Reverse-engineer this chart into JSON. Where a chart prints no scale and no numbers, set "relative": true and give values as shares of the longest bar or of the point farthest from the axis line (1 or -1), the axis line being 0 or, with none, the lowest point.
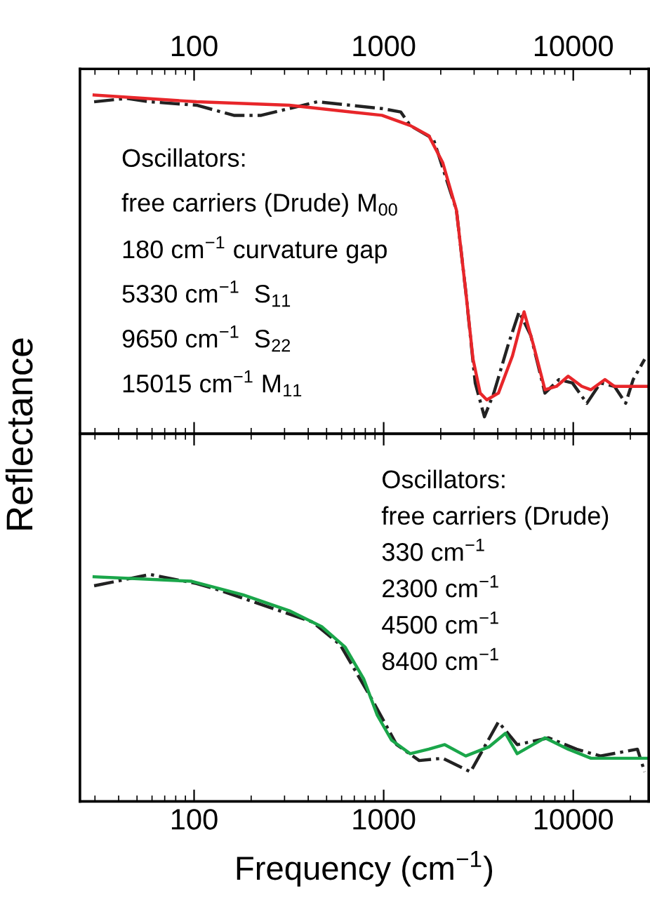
{
  "chart_data": [
    {
      "type": "line",
      "relative": true,
      "ylabel": "Reflectance",
      "xlim": [
        25,
        25000
      ],
      "xticks": [
        100,
        1000,
        10000
      ],
      "log": "x",
      "tick_labels": "x",
      "series": [
        {
          "color": "#222222",
          "line_style": "dashdot",
          "x": [
            29.7,
            44,
            58.5,
            103,
            162,
            226,
            446,
            980,
            1230,
            1380,
            1830,
            2420,
            2710,
            3040,
            3400,
            3810,
            4520,
            5180,
            5970,
            7090,
            8400,
            9900,
            11800,
            13900,
            16500,
            18900,
            20700,
            23800
          ],
          "values": [
            0.98,
            0.99,
            0.98,
            0.97,
            0.94,
            0.94,
            0.98,
            0.96,
            0.95,
            0.91,
            0.87,
            0.66,
            0.42,
            0.15,
            0.05,
            0.12,
            0.26,
            0.36,
            0.29,
            0.12,
            0.16,
            0.15,
            0.09,
            0.15,
            0.14,
            0.09,
            0.16,
            0.22
          ]
        },
        {
          "color": "#e8262a",
          "line_style": "solid",
          "x": [
            29.7,
            103,
            318,
            980,
            1380,
            1730,
            2050,
            2420,
            2710,
            2960,
            3230,
            3500,
            4030,
            4780,
            5500,
            6180,
            7090,
            8160,
            9400,
            11100,
            12400,
            14700,
            16500,
            24500
          ],
          "values": [
            1.0,
            0.98,
            0.97,
            0.94,
            0.91,
            0.88,
            0.8,
            0.66,
            0.42,
            0.22,
            0.12,
            0.1,
            0.12,
            0.23,
            0.36,
            0.26,
            0.13,
            0.14,
            0.17,
            0.14,
            0.13,
            0.16,
            0.14,
            0.14
          ]
        }
      ],
      "annotations": [
        "Oscillators:",
        "free carriers (Drude) M$_{00}$",
        "180 cm$^{−1}$ curvature gap",
        "5330 cm$^{−1}$  S$_{11}$",
        "9650 cm$^{−1}$  S$_{22}$",
        "15015 cm$^{−1}$ M$_{11}$"
      ]
    },
    {
      "type": "line",
      "relative": true,
      "xlabel": "Frequency (cm$^{−1}$)",
      "xlim": [
        25,
        25000
      ],
      "xticks": [
        100,
        1000,
        10000
      ],
      "log": "x",
      "tick_labels": "x",
      "series": [
        {
          "color": "#222222",
          "line_style": "dashdot",
          "x": [
            29.7,
            58.5,
            103,
            137,
            240,
            422,
            590,
            880,
            1170,
            1540,
            2050,
            2870,
            4030,
            5060,
            7420,
            10400,
            13900,
            21800,
            23800
          ],
          "values": [
            0.95,
            1.0,
            0.96,
            0.93,
            0.86,
            0.79,
            0.69,
            0.44,
            0.25,
            0.18,
            0.19,
            0.13,
            0.35,
            0.25,
            0.28,
            0.23,
            0.2,
            0.23,
            0.13
          ]
        },
        {
          "color": "#1aa64a",
          "line_style": "solid",
          "x": [
            29.7,
            97,
            181,
            318,
            471,
            626,
            784,
            925,
            1100,
            1380,
            1730,
            2100,
            2710,
            3590,
            4390,
            5060,
            7090,
            9400,
            12400,
            24500
          ],
          "values": [
            0.99,
            0.97,
            0.91,
            0.84,
            0.77,
            0.68,
            0.54,
            0.38,
            0.27,
            0.21,
            0.23,
            0.25,
            0.2,
            0.24,
            0.3,
            0.21,
            0.28,
            0.23,
            0.19,
            0.19
          ]
        }
      ],
      "annotations": [
        "Oscillators:",
        "free carriers (Drude)",
        "330 cm$^{−1}$",
        "2300 cm$^{−1}$",
        "4500 cm$^{−1}$",
        "8400 cm$^{−1}$"
      ]
    }
  ]
}
